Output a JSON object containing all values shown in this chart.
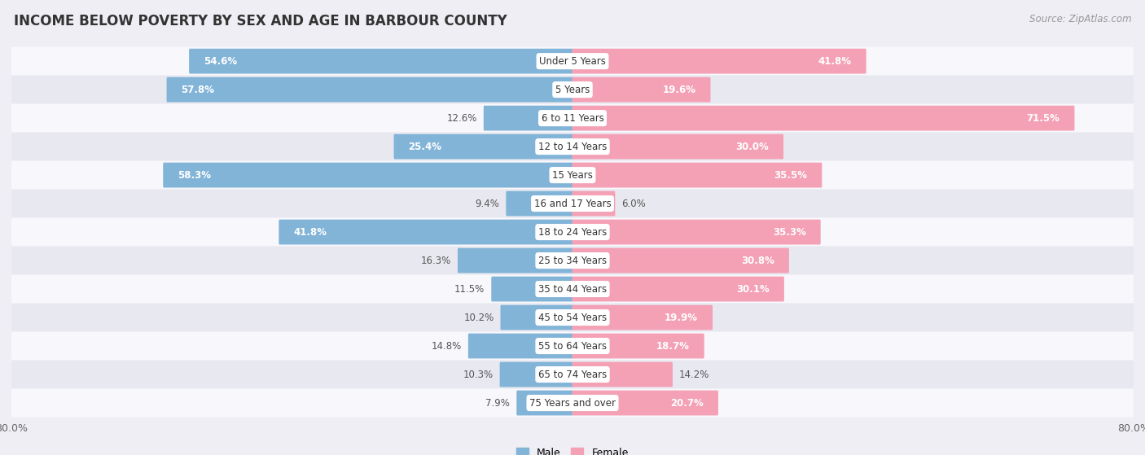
{
  "title": "INCOME BELOW POVERTY BY SEX AND AGE IN BARBOUR COUNTY",
  "source": "Source: ZipAtlas.com",
  "categories": [
    "Under 5 Years",
    "5 Years",
    "6 to 11 Years",
    "12 to 14 Years",
    "15 Years",
    "16 and 17 Years",
    "18 to 24 Years",
    "25 to 34 Years",
    "35 to 44 Years",
    "45 to 54 Years",
    "55 to 64 Years",
    "65 to 74 Years",
    "75 Years and over"
  ],
  "male_values": [
    54.6,
    57.8,
    12.6,
    25.4,
    58.3,
    9.4,
    41.8,
    16.3,
    11.5,
    10.2,
    14.8,
    10.3,
    7.9
  ],
  "female_values": [
    41.8,
    19.6,
    71.5,
    30.0,
    35.5,
    6.0,
    35.3,
    30.8,
    30.1,
    19.9,
    18.7,
    14.2,
    20.7
  ],
  "male_color": "#82B4D8",
  "female_color": "#F4A0B5",
  "background_color": "#eeeef4",
  "row_bg_white": "#f8f8fc",
  "row_bg_gray": "#e8e8f0",
  "xlim": 80.0,
  "legend_male": "Male",
  "legend_female": "Female",
  "title_fontsize": 12,
  "source_fontsize": 8.5,
  "label_fontsize": 9,
  "category_fontsize": 8.5,
  "value_fontsize": 8.5,
  "inside_threshold": 18
}
